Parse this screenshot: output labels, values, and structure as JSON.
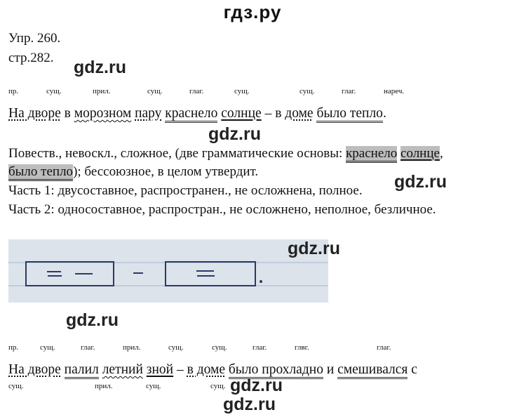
{
  "header": {
    "site_title": "гдз.ру"
  },
  "exercise": {
    "number": "Упр. 260.",
    "page": "стр.282."
  },
  "watermark": "gdz.ru",
  "pos_row1": [
    "пр.",
    "сущ.",
    "прил.",
    "сущ.",
    "глаг.",
    "сущ.",
    "сущ.",
    "глаг.",
    "нареч."
  ],
  "sentence1": {
    "w1": "На ",
    "w2": "дворе",
    "w3": " в ",
    "w4": "морозном",
    "w5": " ",
    "w6": "пару",
    "w7": " ",
    "w8": "краснело",
    "w9": " ",
    "w10": "солнце",
    "w11": " – в ",
    "w12": "доме",
    "w13": " ",
    "w14": "было тепло",
    "w15": "."
  },
  "analysis": {
    "l1a": "Повеств., невоскл., сложное, (две грамматические основы: ",
    "l1b": "краснело",
    "l1c": " ",
    "l1d": "солнце",
    "l1e": ",",
    "l2a": "было тепло",
    "l2b": "); бессоюзное, в целом утвердит.",
    "l3": "Часть 1: двусоставное, распространен., не осложнена, полное.",
    "l4": "Часть 2: односоставное,   распростран., не осложнено, неполное, безличное."
  },
  "pos_row2": [
    "пр.",
    "сущ.",
    "глаг.",
    "прил.",
    "сущ.",
    "сущ.",
    "глаг.",
    "глвг.",
    "глаг."
  ],
  "sentence2": {
    "w1": "На дворе",
    "w2": " ",
    "w3": "палил",
    "w4": " ",
    "w5": "летний",
    "w6": " ",
    "w7": "зной",
    "w8": " – ",
    "w9": "в доме",
    "w10": " ",
    "w11": "было прохладно",
    "w12": " и ",
    "w13": "смешивался",
    "w14": " с"
  },
  "pos_row3": [
    "сущ.",
    "прил.",
    "сущ.",
    "сущ."
  ]
}
